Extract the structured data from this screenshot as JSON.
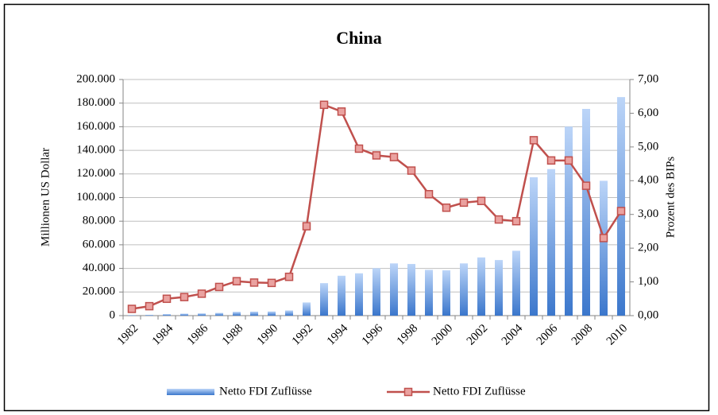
{
  "chart_data": {
    "type": "bar_line",
    "title": "China",
    "y_label": "Millionen US Dollar",
    "y2_label": "Prozent des BIPs",
    "categories": [
      "1982",
      null,
      "1984",
      null,
      "1986",
      null,
      "1988",
      null,
      "1990",
      null,
      "1992",
      null,
      "1994",
      null,
      "1996",
      null,
      "1998",
      null,
      "2000",
      null,
      "2002",
      null,
      "2004",
      null,
      "2006",
      null,
      "2008",
      null,
      "2010"
    ],
    "series": [
      {
        "name": "Netto FDI Zuflüsse",
        "type": "bar",
        "color": "#4f81bd",
        "values": [
          430,
          640,
          1260,
          1660,
          1880,
          2310,
          3190,
          3390,
          3490,
          4370,
          11160,
          27520,
          33790,
          35850,
          40180,
          44240,
          43750,
          38750,
          38400,
          44240,
          49310,
          47080,
          54940,
          117200,
          124100,
          160100,
          175100,
          114200,
          185100
        ]
      },
      {
        "name": "Netto FDI Zuflüsse",
        "type": "line",
        "axis": "y2",
        "color": "#c0504d",
        "values": [
          0.2,
          0.28,
          0.5,
          0.55,
          0.65,
          0.85,
          1.02,
          0.98,
          0.97,
          1.15,
          2.65,
          6.25,
          6.05,
          4.95,
          4.75,
          4.7,
          4.3,
          3.6,
          3.2,
          3.35,
          3.4,
          2.85,
          2.8,
          5.2,
          4.6,
          4.6,
          3.85,
          2.3,
          3.1
        ]
      }
    ],
    "ylim": [
      0,
      200000
    ],
    "yticks": [
      0,
      {
        "value": 20000,
        "label": "20.000"
      },
      {
        "value": 40000,
        "label": "40.000"
      },
      {
        "value": 60000,
        "label": "60.000"
      },
      {
        "value": 80000,
        "label": "80.000"
      },
      {
        "value": 100000,
        "label": "100.000"
      },
      {
        "value": 120000,
        "label": "120.000"
      },
      {
        "value": 140000,
        "label": "140.000"
      },
      {
        "value": 160000,
        "label": "160.000"
      },
      {
        "value": 180000,
        "label": "180.000"
      },
      {
        "value": 200000,
        "label": "200.000"
      }
    ],
    "y2lim": [
      0,
      7
    ],
    "y2ticks": [
      {
        "value": 0,
        "label": "0,00"
      },
      {
        "value": 1,
        "label": "1,00"
      },
      {
        "value": 2,
        "label": "2,00"
      },
      {
        "value": 3,
        "label": "3,00"
      },
      {
        "value": 4,
        "label": "4,00"
      },
      {
        "value": 5,
        "label": "5,00"
      },
      {
        "value": 6,
        "label": "6,00"
      },
      {
        "value": 7,
        "label": "7,00"
      }
    ],
    "grid": true,
    "legend": "bottom"
  }
}
